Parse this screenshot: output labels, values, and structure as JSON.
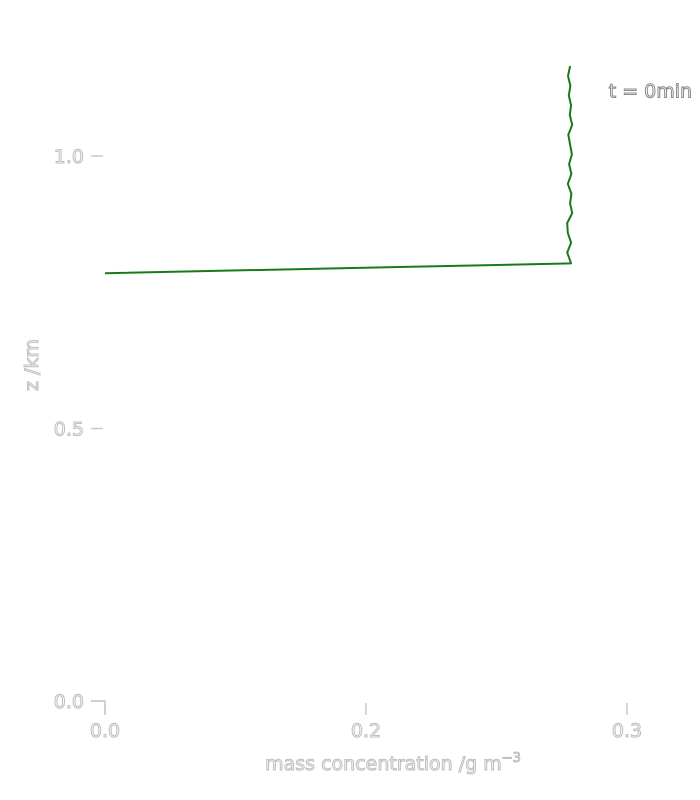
{
  "chart_data": {
    "type": "line",
    "title": "",
    "xlabel": "mass concentration /g m",
    "xlabel_superscript": "−3",
    "ylabel": "z /km",
    "xlim": [
      0.0,
      0.3
    ],
    "ylim": [
      0.0,
      1.2
    ],
    "x_ticks": [
      {
        "value": 0.0,
        "label": "0.0"
      },
      {
        "value": 0.2,
        "label": "0.2"
      },
      {
        "value": 0.3,
        "label": "0.3"
      }
    ],
    "y_ticks": [
      {
        "value": 0.0,
        "label": "0.0"
      },
      {
        "value": 0.5,
        "label": "0.5"
      },
      {
        "value": 1.0,
        "label": "1.0"
      }
    ],
    "grid": false,
    "series": [
      {
        "name": "",
        "color": "#1a7a1a",
        "x": [
          0.0,
          0.2786,
          0.2771,
          0.2786,
          0.2773,
          0.2771,
          0.279,
          0.2782,
          0.2787,
          0.2773,
          0.2787,
          0.2778,
          0.2789,
          0.2782,
          0.2775,
          0.279,
          0.2781,
          0.2786,
          0.2777,
          0.2783,
          0.2774,
          0.2782
        ],
        "y": [
          0.785,
          0.803,
          0.823,
          0.841,
          0.859,
          0.877,
          0.895,
          0.913,
          0.931,
          0.949,
          0.967,
          0.985,
          1.003,
          1.021,
          1.039,
          1.057,
          1.075,
          1.093,
          1.111,
          1.129,
          1.147,
          1.165
        ]
      }
    ],
    "annotations": [
      {
        "text": "t = 0min",
        "x": 0.293,
        "y": 1.12
      }
    ]
  }
}
